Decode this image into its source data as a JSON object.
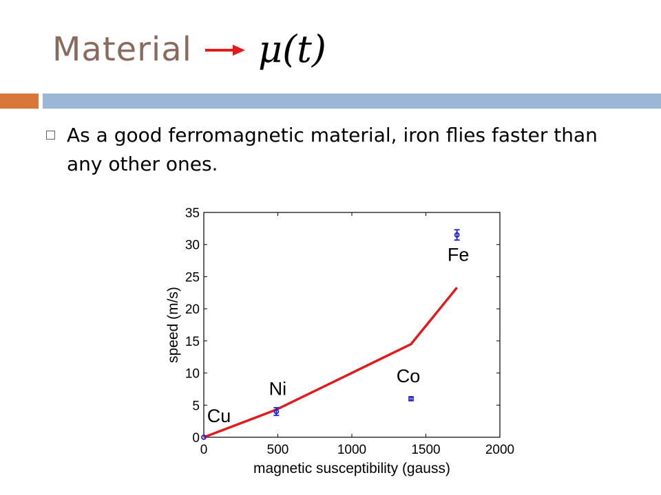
{
  "slide": {
    "title": "Material",
    "formula": {
      "symbol": "μ",
      "argument": "(t)"
    },
    "bullet": "As a good ferromagnetic material, iron flies faster than any other ones."
  },
  "colors": {
    "title": "#8a6a5e",
    "arrow": "#e31a1c",
    "rule_orange": "#d9773b",
    "rule_blue": "#9ab7d5",
    "points": "#1f1fd6",
    "line": "#e31a1c"
  },
  "chart_data": {
    "type": "scatter",
    "xlabel": "magnetic susceptibility (gauss)",
    "ylabel": "speed (m/s)",
    "xlim": [
      0,
      2000
    ],
    "ylim": [
      0,
      35
    ],
    "xticks": [
      0,
      500,
      1000,
      1500,
      2000
    ],
    "yticks": [
      0,
      5,
      10,
      15,
      20,
      25,
      30,
      35
    ],
    "grid": false,
    "points": [
      {
        "label": "Cu",
        "x": 0,
        "y": 0,
        "err": 0
      },
      {
        "label": "Ni",
        "x": 490,
        "y": 4.0,
        "err": 0.6
      },
      {
        "label": "Co",
        "x": 1400,
        "y": 6.0,
        "err": 0.3
      },
      {
        "label": "Fe",
        "x": 1710,
        "y": 31.5,
        "err": 0.8
      }
    ],
    "fit_line": {
      "x": [
        0,
        490,
        1400,
        1710
      ],
      "y": [
        0,
        4.3,
        14.5,
        23.3
      ]
    }
  }
}
